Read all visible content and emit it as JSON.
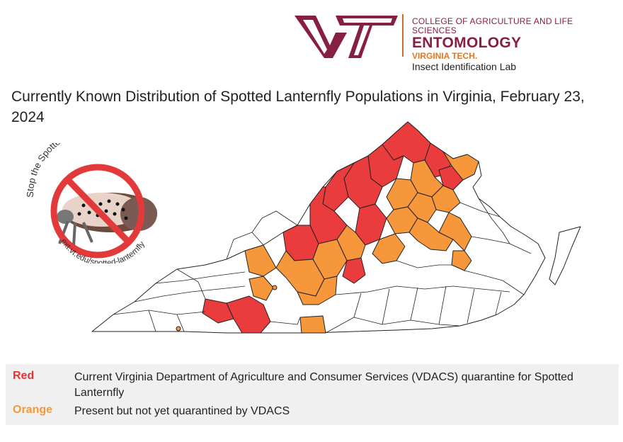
{
  "header": {
    "college": "COLLEGE OF AGRICULTURE AND LIFE SCIENCES",
    "department": "ENTOMOLOGY",
    "university": "VIRGINIA TECH.",
    "lab": "Insect Identification Lab",
    "vt_color": "#861f41",
    "orange_color": "#e5751f"
  },
  "title": "Currently Known Distribution of Spotted Lanternfly Populations in Virginia, February 23, 2024",
  "badge": {
    "top_text": "Stop the Spotted Lanternfly!",
    "bottom_text": "ext.vt.edu/spotted-lanternfly",
    "icon": "no-symbol-lanternfly-icon"
  },
  "map": {
    "region": "Virginia counties",
    "colors": {
      "quarantined": "#ea3c3c",
      "present": "#f5973a",
      "none": "#ffffff",
      "border": "#222222"
    }
  },
  "legend": [
    {
      "key": "Red",
      "color": "#e8323a",
      "text": "Current Virginia Department of Agriculture and Consumer Services (VDACS) quarantine for Spotted Lanternfly"
    },
    {
      "key": "Orange",
      "color": "#f39a3c",
      "text": "Present but not yet quarantined by VDACS"
    }
  ]
}
